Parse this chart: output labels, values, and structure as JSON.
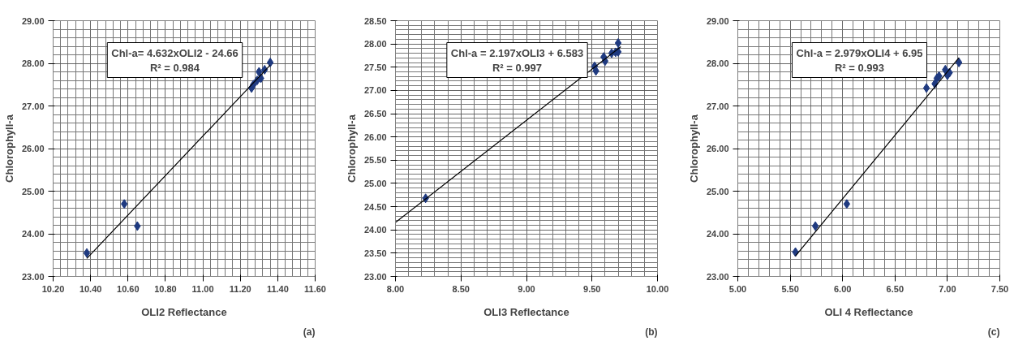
{
  "chart_data": [
    {
      "type": "scatter",
      "xlabel": "OLI2 Reflectance",
      "ylabel": "Chlorophyll-a",
      "xlim": [
        10.2,
        11.6
      ],
      "ylim": [
        23,
        29
      ],
      "xticks": [
        {
          "value": 10.2,
          "label": "10.20"
        },
        {
          "value": 10.4,
          "label": "10.40"
        },
        {
          "value": 10.6,
          "label": "10.60"
        },
        {
          "value": 10.8,
          "label": "10.80"
        },
        {
          "value": 11.0,
          "label": "11.00"
        },
        {
          "value": 11.2,
          "label": "11.20"
        },
        {
          "value": 11.4,
          "label": "11.40"
        },
        {
          "value": 11.6,
          "label": "11.60"
        }
      ],
      "yticks": [
        {
          "value": 23,
          "label": "23.00"
        },
        {
          "value": 24,
          "label": "24.00"
        },
        {
          "value": 25,
          "label": "25.00"
        },
        {
          "value": 26,
          "label": "26.00"
        },
        {
          "value": 27,
          "label": "27.00"
        },
        {
          "value": 28,
          "label": "28.00"
        },
        {
          "value": 29,
          "label": "29.00"
        }
      ],
      "grid": true,
      "annotations": [
        "Chl-a= 4.632xOLI2 - 24.66",
        "R² = 0.984",
        "(a)"
      ],
      "series": [
        {
          "marker": "diamond",
          "color": "#1f3a80",
          "x": [
            10.38,
            10.58,
            10.65,
            11.26,
            11.27,
            11.29,
            11.3,
            11.31,
            11.33,
            11.36
          ],
          "values": [
            23.55,
            24.7,
            24.18,
            27.42,
            27.5,
            27.6,
            27.8,
            27.65,
            27.85,
            28.02
          ]
        },
        {
          "type": "line",
          "color": "#000000",
          "x": [
            10.38,
            11.36
          ],
          "values": [
            23.42,
            27.96
          ]
        }
      ]
    },
    {
      "type": "scatter",
      "xlabel": "OLI3 Reflectance",
      "ylabel": "Chlorophyll-a",
      "xlim": [
        8.0,
        10.0
      ],
      "ylim": [
        23,
        28.5
      ],
      "xticks": [
        {
          "value": 8.0,
          "label": "8.00"
        },
        {
          "value": 8.5,
          "label": "8.50"
        },
        {
          "value": 9.0,
          "label": "9.00"
        },
        {
          "value": 9.5,
          "label": "9.50"
        },
        {
          "value": 10.0,
          "label": "10.00"
        }
      ],
      "yticks": [
        {
          "value": 23,
          "label": "23.00"
        },
        {
          "value": 23.5,
          "label": "23.50"
        },
        {
          "value": 24,
          "label": "24.00"
        },
        {
          "value": 24.5,
          "label": "24.50"
        },
        {
          "value": 25,
          "label": "25.00"
        },
        {
          "value": 25.5,
          "label": "25.50"
        },
        {
          "value": 26,
          "label": "26.00"
        },
        {
          "value": 26.5,
          "label": "26.50"
        },
        {
          "value": 27,
          "label": "27.00"
        },
        {
          "value": 27.5,
          "label": "27.50"
        },
        {
          "value": 28,
          "label": "28.00"
        },
        {
          "value": 28.5,
          "label": "28.50"
        }
      ],
      "grid": true,
      "annotations": [
        "Chl-a = 2.197xOLI3 + 6.583",
        "R² = 0.997",
        "(b)"
      ],
      "series": [
        {
          "marker": "diamond",
          "color": "#1f3a80",
          "x": [
            8.23,
            9.52,
            9.53,
            9.59,
            9.6,
            9.65,
            9.68,
            9.7,
            9.7
          ],
          "values": [
            24.68,
            27.52,
            27.42,
            27.72,
            27.63,
            27.8,
            27.82,
            28.02,
            27.83
          ]
        },
        {
          "type": "line",
          "color": "#000000",
          "x": [
            8.0,
            9.72
          ],
          "values": [
            24.16,
            27.94
          ]
        }
      ]
    },
    {
      "type": "scatter",
      "xlabel": "OLI 4 Reflectance",
      "ylabel": "Chlorophyll-a",
      "xlim": [
        5.0,
        7.5
      ],
      "ylim": [
        23,
        29
      ],
      "xticks": [
        {
          "value": 5.0,
          "label": "5.00"
        },
        {
          "value": 5.5,
          "label": "5.50"
        },
        {
          "value": 6.0,
          "label": "6.00"
        },
        {
          "value": 6.5,
          "label": "6.50"
        },
        {
          "value": 7.0,
          "label": "7.00"
        },
        {
          "value": 7.5,
          "label": "7.50"
        }
      ],
      "yticks": [
        {
          "value": 23,
          "label": "23.00"
        },
        {
          "value": 24,
          "label": "24.00"
        },
        {
          "value": 25,
          "label": "25.00"
        },
        {
          "value": 26,
          "label": "26.00"
        },
        {
          "value": 27,
          "label": "27.00"
        },
        {
          "value": 28,
          "label": "28.00"
        },
        {
          "value": 29,
          "label": "29.00"
        }
      ],
      "grid": true,
      "annotations": [
        "Chl-a = 2.979xOLI4 + 6.95",
        "R² = 0.993",
        "(c)"
      ],
      "series": [
        {
          "marker": "diamond",
          "color": "#1f3a80",
          "x": [
            5.55,
            5.74,
            6.04,
            6.8,
            6.88,
            6.9,
            6.92,
            6.98,
            7.0,
            7.02,
            7.11
          ],
          "values": [
            23.57,
            24.18,
            24.7,
            27.42,
            27.52,
            27.65,
            27.7,
            27.85,
            27.72,
            27.78,
            28.02
          ]
        },
        {
          "type": "line",
          "color": "#000000",
          "x": [
            5.55,
            7.11
          ],
          "values": [
            23.48,
            28.13
          ]
        }
      ]
    }
  ]
}
